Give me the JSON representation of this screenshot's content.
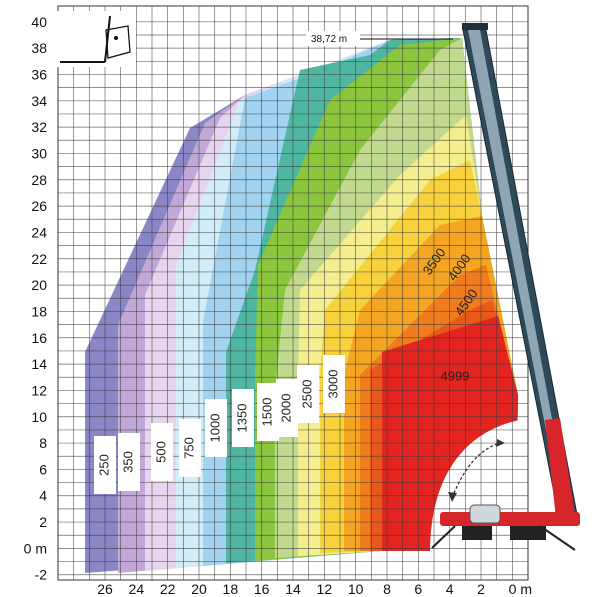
{
  "chart_data": {
    "type": "area",
    "title": "",
    "xlabel": "m",
    "ylabel": "m",
    "xlim": [
      29,
      -1
    ],
    "ylim": [
      -2,
      40
    ],
    "grid": true,
    "x_ticks": [
      "26",
      "24",
      "22",
      "20",
      "18",
      "16",
      "14",
      "12",
      "10",
      "8",
      "6",
      "4",
      "2",
      "0 m"
    ],
    "x_tick_values": [
      26,
      24,
      22,
      20,
      18,
      16,
      14,
      12,
      10,
      8,
      6,
      4,
      2,
      0
    ],
    "y_ticks": [
      "40",
      "38",
      "36",
      "34",
      "32",
      "30",
      "28",
      "26",
      "24",
      "22",
      "20",
      "18",
      "16",
      "14",
      "12",
      "10",
      "8",
      "6",
      "4",
      "2",
      "0 m",
      "-2"
    ],
    "y_tick_values": [
      40,
      38,
      36,
      34,
      32,
      30,
      28,
      26,
      24,
      22,
      20,
      18,
      16,
      14,
      12,
      10,
      8,
      6,
      4,
      2,
      0,
      -2
    ],
    "max_height_label": "38,72 m",
    "max_height_value": 38.72,
    "series": [
      {
        "name": "250",
        "color": "#8b86c6"
      },
      {
        "name": "350",
        "color": "#c2a8d8"
      },
      {
        "name": "500",
        "color": "#e7d5ee"
      },
      {
        "name": "750",
        "color": "#d2ecf8"
      },
      {
        "name": "1000",
        "color": "#a2d4f1"
      },
      {
        "name": "1350",
        "color": "#4fb7a1"
      },
      {
        "name": "1500",
        "color": "#8cc63e"
      },
      {
        "name": "2000",
        "color": "#c1da8f"
      },
      {
        "name": "2500",
        "color": "#f5ee8f"
      },
      {
        "name": "3000",
        "color": "#f7d23c"
      },
      {
        "name": "3500",
        "color": "#f4a623"
      },
      {
        "name": "4000",
        "color": "#f07c1e"
      },
      {
        "name": "4500",
        "color": "#e85a1c"
      },
      {
        "name": "4999",
        "color": "#e32420"
      }
    ]
  }
}
